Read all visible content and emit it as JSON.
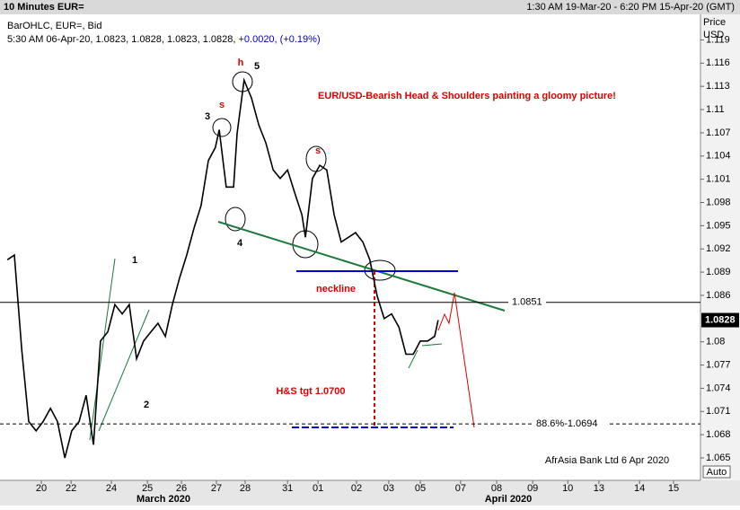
{
  "header": {
    "title": "10 Minutes EUR=",
    "range": "1:30 AM 19-Mar-20 - 6:20 PM 15-Apr-20 (GMT)"
  },
  "chart_data": {
    "type": "line",
    "subtitle": "BarOHLC, EUR=, Bid",
    "quote": "5:30 AM 06-Apr-20, 1.0823, 1.0828, 1.0823, 1.0828,",
    "change": "+0.0020, (+0.19%)",
    "title": "EUR/USD-Bearish Head & Shoulders painting a gloomy picture!",
    "y_label": "Price",
    "y_unit": "USD",
    "scale_mode": "Auto",
    "source": "AfrAsia Bank Ltd 6 Apr 2020",
    "months": [
      "March 2020",
      "April 2020"
    ],
    "annotations": [
      "neckline",
      "H&S tgt 1.0700",
      "1",
      "2",
      "3",
      "4",
      "5",
      "s",
      "h",
      "s"
    ],
    "color": "#000000",
    "x": [
      -0.97,
      -0.77,
      -0.56,
      -0.36,
      -0.15,
      0.05,
      0.26,
      0.46,
      0.67,
      0.87,
      1.08,
      1.28,
      1.49,
      1.69,
      1.9,
      2.1,
      2.31,
      2.51,
      2.72,
      2.92,
      3.13,
      3.33,
      3.54,
      3.74,
      3.95,
      4.15,
      4.36,
      4.56,
      4.77,
      4.97,
      5.08,
      5.28,
      5.49,
      5.59,
      5.79,
      6.0,
      6.21,
      6.41,
      6.62,
      6.82,
      7.03,
      7.23,
      7.44,
      7.54,
      7.74,
      7.95,
      8.15,
      8.36,
      8.56,
      8.77,
      8.97,
      9.18,
      9.38,
      9.59,
      9.79,
      10.0,
      10.21,
      10.41,
      10.62,
      10.82,
      11.03,
      11.23,
      11.33
    ],
    "values": [
      1.0906,
      1.0912,
      1.079,
      1.0697,
      1.0685,
      1.0697,
      1.0714,
      1.0697,
      1.065,
      1.0685,
      1.0697,
      1.0731,
      1.0667,
      1.0801,
      1.0813,
      1.0848,
      1.0836,
      1.0848,
      1.0778,
      1.0801,
      1.0813,
      1.0824,
      1.0807,
      1.0848,
      1.0883,
      1.0912,
      1.0947,
      1.0976,
      1.1034,
      1.1051,
      1.1074,
      1.1,
      1.1,
      1.1069,
      1.1138,
      1.1115,
      1.108,
      1.1057,
      1.1022,
      1.1011,
      1.1022,
      1.0993,
      1.0964,
      1.0935,
      1.1011,
      1.1028,
      1.1022,
      1.0964,
      1.0929,
      1.0935,
      1.0941,
      1.0929,
      1.0906,
      1.0859,
      1.083,
      1.0836,
      1.0819,
      1.0784,
      1.0784,
      1.0801,
      1.0801,
      1.0807,
      1.0828
    ],
    "last_price": 1.0828,
    "hline": 1.0851,
    "target": {
      "value": 1.0694,
      "label": "88.6%-1.0694"
    },
    "xlim": [
      -1.18,
      18.82
    ],
    "ylim": [
      1.0621,
      1.1223
    ],
    "xticks": [
      {
        "value": 0,
        "label": "20"
      },
      {
        "value": 0.85,
        "label": "22"
      },
      {
        "value": 2.0,
        "label": "24"
      },
      {
        "value": 3.03,
        "label": "25"
      },
      {
        "value": 4.0,
        "label": "26"
      },
      {
        "value": 5.0,
        "label": "27"
      },
      {
        "value": 5.82,
        "label": "28"
      },
      {
        "value": 7.03,
        "label": "31"
      },
      {
        "value": 7.9,
        "label": "01"
      },
      {
        "value": 9.0,
        "label": "02"
      },
      {
        "value": 9.92,
        "label": "03"
      },
      {
        "value": 10.82,
        "label": "05"
      },
      {
        "value": 11.97,
        "label": "07"
      },
      {
        "value": 13.0,
        "label": "08"
      },
      {
        "value": 14.03,
        "label": "09"
      },
      {
        "value": 15.03,
        "label": "10"
      },
      {
        "value": 15.92,
        "label": "13"
      },
      {
        "value": 17.08,
        "label": "14"
      },
      {
        "value": 18.05,
        "label": "15"
      }
    ],
    "yticks": [
      1.065,
      1.068,
      1.071,
      1.074,
      1.077,
      1.08,
      1.086,
      1.089,
      1.092,
      1.095,
      1.098,
      1.101,
      1.104,
      1.107,
      1.11,
      1.113,
      1.116,
      1.119
    ],
    "grid": false
  }
}
